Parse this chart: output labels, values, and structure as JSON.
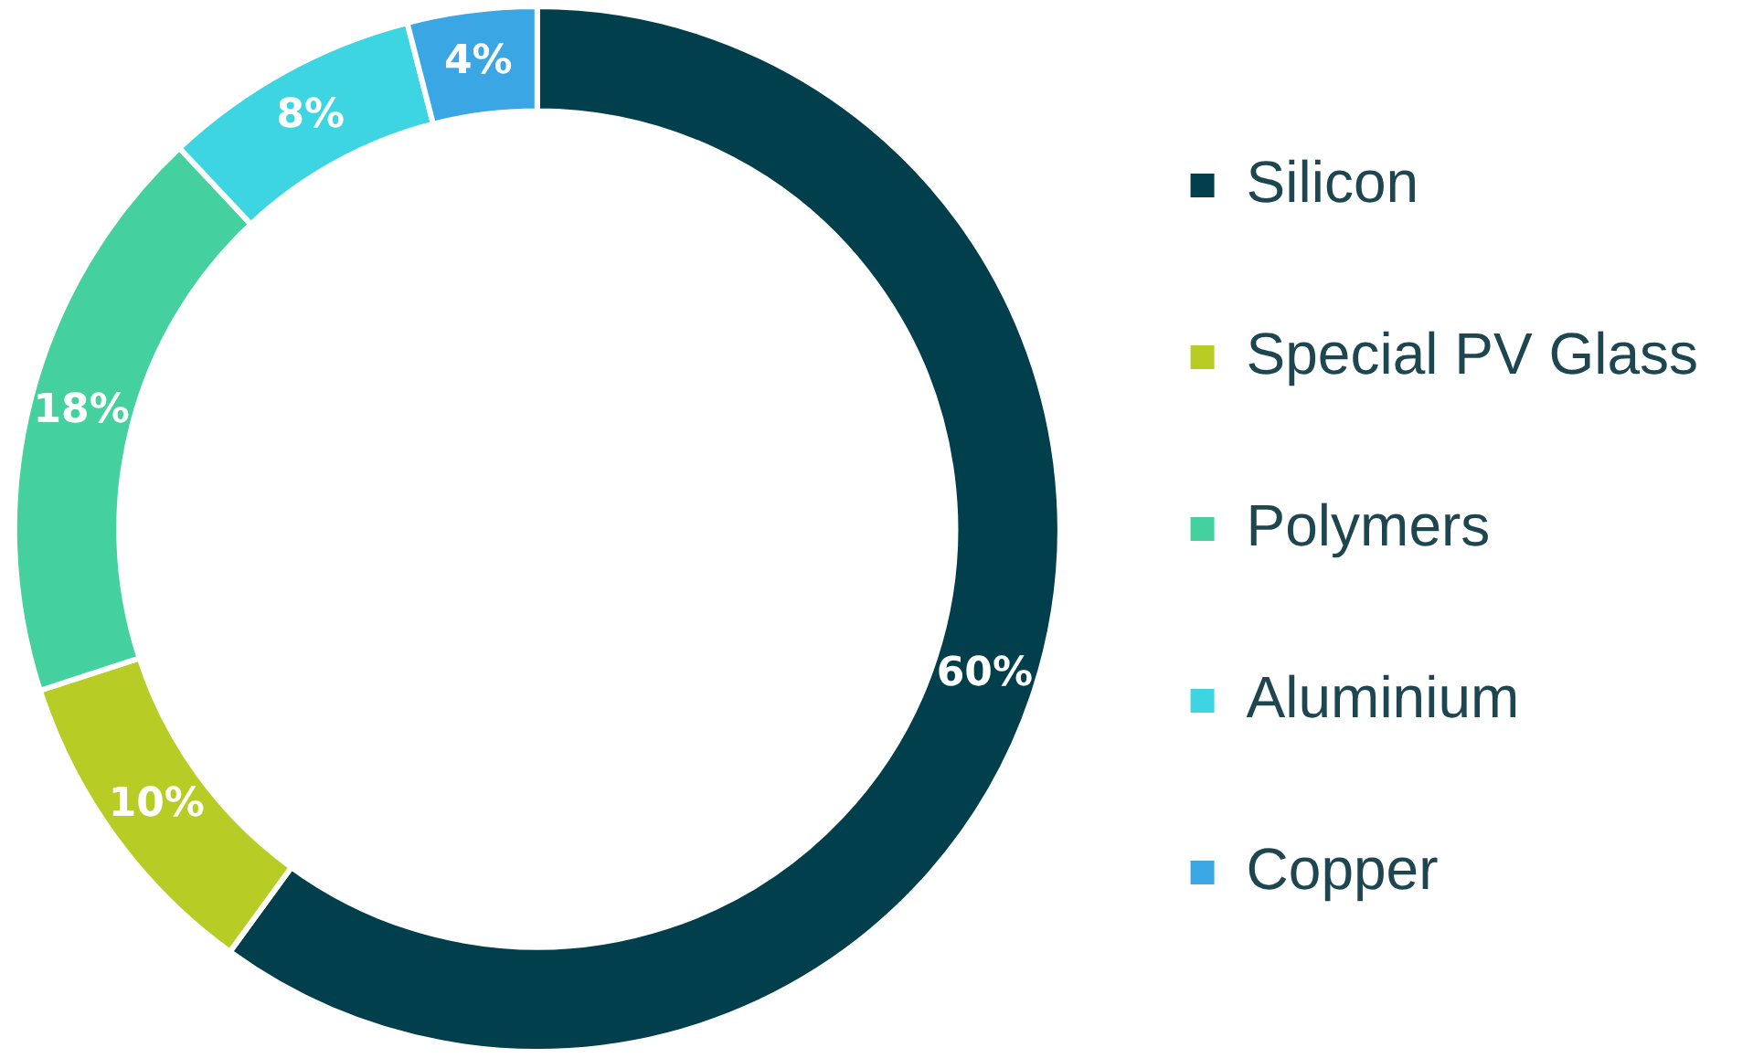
{
  "chart_data": {
    "type": "donut",
    "categories": [
      "Silicon",
      "Special PV Glass",
      "Polymers",
      "Aluminium",
      "Copper"
    ],
    "values": [
      60,
      10,
      18,
      8,
      4
    ],
    "colors": [
      "#003f4b",
      "#b8cc26",
      "#44d19f",
      "#3ed5e2",
      "#3aa6e3"
    ],
    "value_labels": [
      "60%",
      "10%",
      "18%",
      "8%",
      "4%"
    ],
    "legend": "right"
  }
}
